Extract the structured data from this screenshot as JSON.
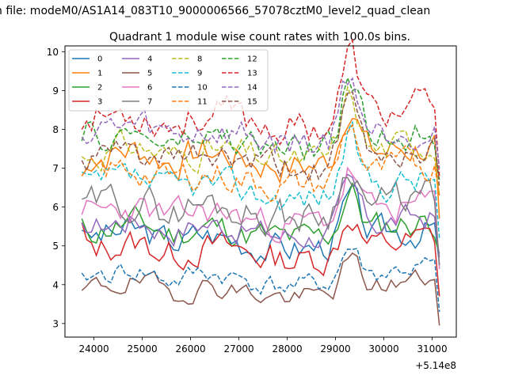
{
  "figure": {
    "suptitle": "n file: modeM0/AS1A14_083T10_9000006566_57078cztM0_level2_quad_clean"
  },
  "chart_data": {
    "type": "line",
    "title": "Quadrant 1 module wise count rates with 100.0s bins.",
    "xlabel": "",
    "ylabel": "",
    "x_offset_label": "+5.14e8",
    "xlim": [
      23400,
      31500
    ],
    "ylim": [
      2.65,
      10.15
    ],
    "x_ticks": [
      24000,
      25000,
      26000,
      27000,
      28000,
      29000,
      30000,
      31000
    ],
    "y_ticks": [
      3,
      4,
      5,
      6,
      7,
      8,
      9,
      10
    ],
    "x_start": 23750,
    "x_step": 100,
    "legend": {
      "placement": "top-left",
      "columns": 4
    },
    "series": [
      {
        "name": "0",
        "color": "#1f77b4",
        "style": "solid",
        "base": 5.2,
        "amp": 0.35,
        "seed": 3,
        "start": 5.4,
        "end": 4.5
      },
      {
        "name": "1",
        "color": "#ff7f0e",
        "style": "solid",
        "base": 7.3,
        "amp": 0.4,
        "seed": 7,
        "start": 6.8,
        "end": 5.7
      },
      {
        "name": "2",
        "color": "#2ca02c",
        "style": "solid",
        "base": 5.4,
        "amp": 0.35,
        "seed": 11,
        "start": 5.7,
        "end": 4.8
      },
      {
        "name": "3",
        "color": "#d62728",
        "style": "solid",
        "base": 4.9,
        "amp": 0.35,
        "seed": 13,
        "start": 5.6,
        "end": 3.7
      },
      {
        "name": "4",
        "color": "#9467bd",
        "style": "solid",
        "base": 5.5,
        "amp": 0.3,
        "seed": 17,
        "start": 5.6,
        "end": 4.7
      },
      {
        "name": "5",
        "color": "#8c564b",
        "style": "solid",
        "base": 3.9,
        "amp": 0.25,
        "seed": 19,
        "start": 3.85,
        "end": 2.95
      },
      {
        "name": "6",
        "color": "#e377c2",
        "style": "solid",
        "base": 5.8,
        "amp": 0.35,
        "seed": 23,
        "start": 5.8,
        "end": 4.4
      },
      {
        "name": "7",
        "color": "#7f7f7f",
        "style": "solid",
        "base": 6.0,
        "amp": 0.4,
        "seed": 29,
        "start": 6.2,
        "end": 4.5
      },
      {
        "name": "8",
        "color": "#bcbd22",
        "style": "dashed",
        "base": 7.4,
        "amp": 0.35,
        "seed": 31,
        "start": 7.3,
        "end": 6.3
      },
      {
        "name": "9",
        "color": "#17becf",
        "style": "dashed",
        "base": 6.5,
        "amp": 0.35,
        "seed": 37,
        "start": 6.9,
        "end": 5.2
      },
      {
        "name": "10",
        "color": "#1f77b4",
        "style": "dashed",
        "base": 4.2,
        "amp": 0.25,
        "seed": 41,
        "start": 4.3,
        "end": 3.3
      },
      {
        "name": "11",
        "color": "#ff7f0e",
        "style": "dashed",
        "base": 6.8,
        "amp": 0.35,
        "seed": 43,
        "start": 6.8,
        "end": 6.3
      },
      {
        "name": "12",
        "color": "#2ca02c",
        "style": "dashed",
        "base": 7.7,
        "amp": 0.35,
        "seed": 47,
        "start": 7.7,
        "end": 6.7
      },
      {
        "name": "13",
        "color": "#d62728",
        "style": "dashed",
        "base": 8.3,
        "amp": 0.4,
        "seed": 53,
        "start": 8.0,
        "end": 6.8
      },
      {
        "name": "14",
        "color": "#9467bd",
        "style": "dashed",
        "base": 7.9,
        "amp": 0.4,
        "seed": 59,
        "start": 7.8,
        "end": 7.0
      },
      {
        "name": "15",
        "color": "#8c564b",
        "style": "dashed",
        "base": 7.2,
        "amp": 0.35,
        "seed": 61,
        "start": 7.2,
        "end": 6.5
      }
    ],
    "peak": {
      "x": 29300,
      "width": 260,
      "gain": 1.25
    },
    "dip": {
      "x": 25600,
      "width": 500,
      "gain": -0.35
    },
    "x_end": 31150
  }
}
